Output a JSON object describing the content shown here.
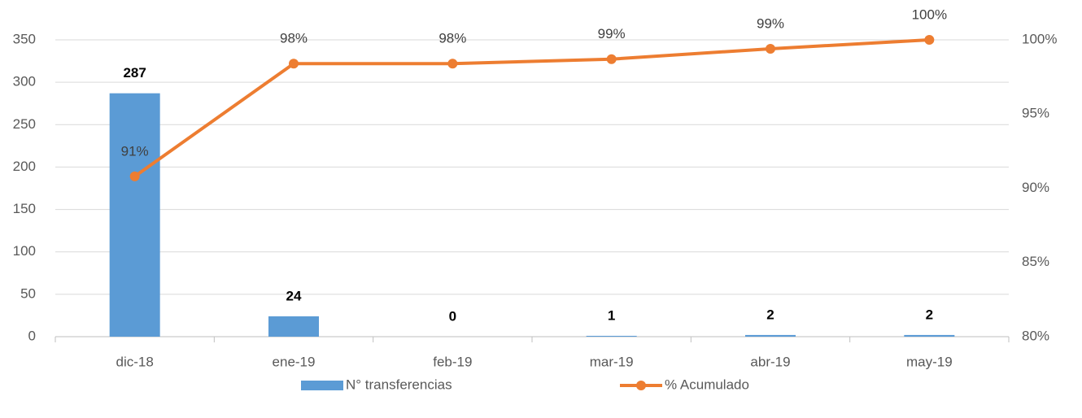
{
  "chart_data": {
    "type": "bar_line",
    "categories": [
      "dic-18",
      "ene-19",
      "feb-19",
      "mar-19",
      "abr-19",
      "may-19"
    ],
    "series": [
      {
        "name": "N° transferencias",
        "type": "bar",
        "color": "#5b9bd5",
        "values": [
          287,
          24,
          0,
          1,
          2,
          2
        ]
      },
      {
        "name": "% Acumulado",
        "type": "line",
        "axis": "y2",
        "color": "#ed7d31",
        "values": [
          90.8,
          98.4,
          98.4,
          98.7,
          99.4,
          100
        ],
        "value_labels": [
          "91%",
          "98%",
          "98%",
          "99%",
          "99%",
          "100%"
        ]
      }
    ],
    "ylim": [
      0,
      350
    ],
    "yticks": [
      0,
      50,
      100,
      150,
      200,
      250,
      300,
      350
    ],
    "y2lim": [
      80,
      100
    ],
    "y2ticks": [
      {
        "value": 80,
        "label": "80%"
      },
      {
        "value": 85,
        "label": "85%"
      },
      {
        "value": 90,
        "label": "90%"
      },
      {
        "value": 95,
        "label": "95%"
      },
      {
        "value": 100,
        "label": "100%"
      }
    ],
    "grid": true,
    "legend": "bottom"
  }
}
